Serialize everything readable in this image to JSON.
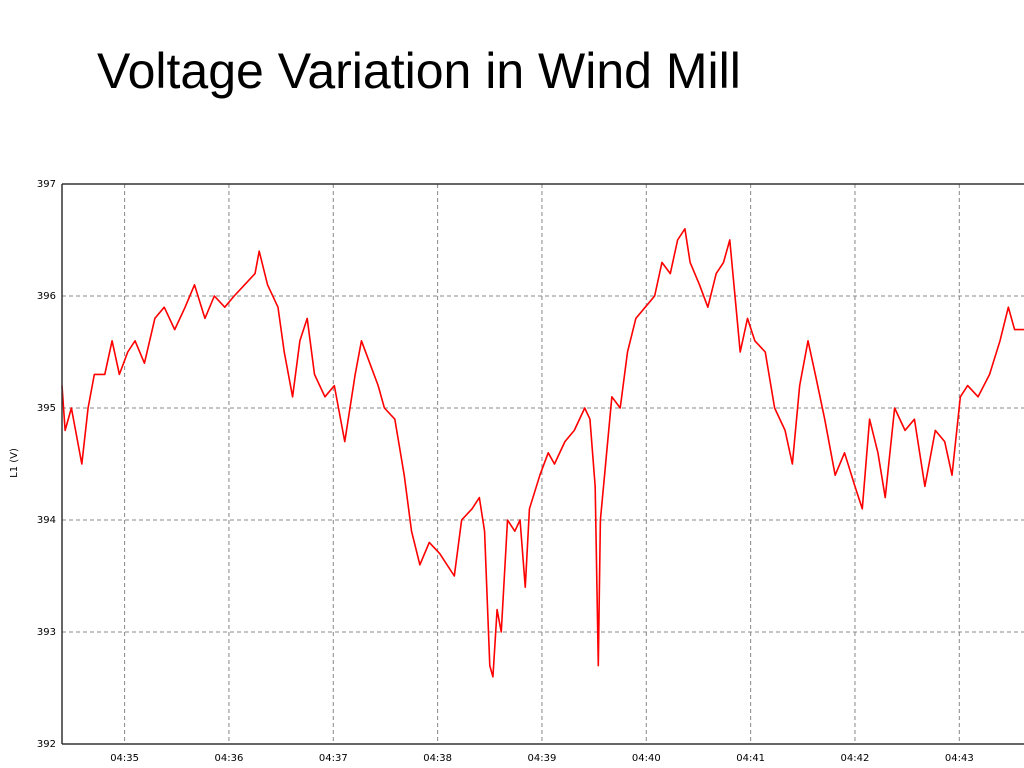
{
  "chart_data": {
    "type": "line",
    "title": "Voltage Variation in Wind Mill",
    "ylabel": "L1 (V)",
    "color": "#ff0000",
    "grid": true,
    "x": [
      274.4,
      274.43,
      274.49,
      274.55,
      274.59,
      274.65,
      274.71,
      274.81,
      274.88,
      274.95,
      275.03,
      275.1,
      275.19,
      275.29,
      275.38,
      275.48,
      275.58,
      275.67,
      275.77,
      275.86,
      275.96,
      276.05,
      276.15,
      276.25,
      276.29,
      276.37,
      276.47,
      276.53,
      276.61,
      276.68,
      276.75,
      276.82,
      276.92,
      277.01,
      277.11,
      277.21,
      277.27,
      277.35,
      277.43,
      277.49,
      277.59,
      277.68,
      277.75,
      277.83,
      277.92,
      278.02,
      278.16,
      278.23,
      278.33,
      278.4,
      278.45,
      278.5,
      278.53,
      278.57,
      278.61,
      278.67,
      278.74,
      278.79,
      278.84,
      278.88,
      278.98,
      279.06,
      279.12,
      279.22,
      279.31,
      279.41,
      279.46,
      279.51,
      279.54,
      279.56,
      279.61,
      279.67,
      279.75,
      279.82,
      279.9,
      279.99,
      280.08,
      280.15,
      280.23,
      280.3,
      280.37,
      280.42,
      280.51,
      280.59,
      280.67,
      280.74,
      280.8,
      280.85,
      280.9,
      280.97,
      281.04,
      281.14,
      281.23,
      281.33,
      281.4,
      281.47,
      281.55,
      281.62,
      281.71,
      281.81,
      281.9,
      282.0,
      282.07,
      282.14,
      282.22,
      282.29,
      282.38,
      282.48,
      282.57,
      282.67,
      282.77,
      282.86,
      282.93,
      283.01,
      283.08,
      283.18,
      283.29,
      283.39,
      283.47,
      283.53,
      283.62
    ],
    "values": [
      395.2,
      394.8,
      395.0,
      394.7,
      394.5,
      395.0,
      395.3,
      395.3,
      395.6,
      395.3,
      395.5,
      395.6,
      395.4,
      395.8,
      395.9,
      395.7,
      395.9,
      396.1,
      395.8,
      396.0,
      395.9,
      396.0,
      396.1,
      396.2,
      396.4,
      396.1,
      395.9,
      395.5,
      395.1,
      395.6,
      395.8,
      395.3,
      395.1,
      395.2,
      394.7,
      395.3,
      395.6,
      395.4,
      395.2,
      395.0,
      394.9,
      394.4,
      393.9,
      393.6,
      393.8,
      393.7,
      393.5,
      394.0,
      394.1,
      394.2,
      393.9,
      392.7,
      392.6,
      393.2,
      393.0,
      394.0,
      393.9,
      394.0,
      393.4,
      394.1,
      394.4,
      394.6,
      394.5,
      394.7,
      394.8,
      395.0,
      394.9,
      394.3,
      392.7,
      394.0,
      394.5,
      395.1,
      395.0,
      395.5,
      395.8,
      395.9,
      396.0,
      396.3,
      396.2,
      396.5,
      396.6,
      396.3,
      396.1,
      395.9,
      396.2,
      396.3,
      396.5,
      396.0,
      395.5,
      395.8,
      395.6,
      395.5,
      395.0,
      394.8,
      394.5,
      395.2,
      395.6,
      395.3,
      394.9,
      394.4,
      394.6,
      394.3,
      394.1,
      394.9,
      394.6,
      394.2,
      395.0,
      394.8,
      394.9,
      394.3,
      394.8,
      394.7,
      394.4,
      395.1,
      395.2,
      395.1,
      395.3,
      395.6,
      395.9,
      395.7,
      395.7
    ],
    "xlim": [
      274.4,
      283.62
    ],
    "xticks": [
      {
        "value": 275,
        "label": "04:35"
      },
      {
        "value": 276,
        "label": "04:36"
      },
      {
        "value": 277,
        "label": "04:37"
      },
      {
        "value": 278,
        "label": "04:38"
      },
      {
        "value": 279,
        "label": "04:39"
      },
      {
        "value": 280,
        "label": "04:40"
      },
      {
        "value": 281,
        "label": "04:41"
      },
      {
        "value": 282,
        "label": "04:42"
      },
      {
        "value": 283,
        "label": "04:43"
      }
    ],
    "ylim": [
      392,
      397
    ],
    "yticks": [
      392,
      393,
      394,
      395,
      396,
      397
    ]
  }
}
